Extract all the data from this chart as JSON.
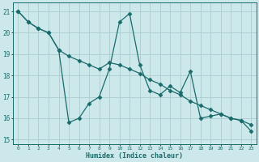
{
  "title": "",
  "xlabel": "Humidex (Indice chaleur)",
  "ylabel": "",
  "bg_color": "#cce8ea",
  "grid_color": "#aacdd0",
  "line_color": "#1a6b6b",
  "xlim": [
    -0.5,
    23.5
  ],
  "ylim": [
    14.8,
    21.4
  ],
  "xticks": [
    0,
    1,
    2,
    3,
    4,
    5,
    6,
    7,
    8,
    9,
    10,
    11,
    12,
    13,
    14,
    15,
    16,
    17,
    18,
    19,
    20,
    21,
    22,
    23
  ],
  "yticks": [
    15,
    16,
    17,
    18,
    19,
    20,
    21
  ],
  "data_x": [
    0,
    1,
    2,
    3,
    4,
    5,
    6,
    7,
    8,
    9,
    10,
    11,
    12,
    13,
    14,
    15,
    16,
    17,
    18,
    19,
    20,
    21,
    22,
    23
  ],
  "data_y1": [
    21.0,
    20.5,
    20.2,
    20.0,
    19.2,
    15.8,
    16.0,
    16.7,
    17.0,
    18.3,
    20.5,
    20.9,
    18.5,
    17.3,
    17.1,
    17.5,
    17.2,
    18.2,
    16.0,
    16.1,
    16.2,
    16.0,
    15.9,
    15.4
  ],
  "data_y2": [
    21.0,
    20.5,
    20.2,
    20.0,
    19.2,
    18.9,
    18.7,
    18.5,
    18.3,
    18.6,
    18.5,
    18.3,
    18.1,
    17.8,
    17.6,
    17.3,
    17.1,
    16.8,
    16.6,
    16.4,
    16.2,
    16.0,
    15.9,
    15.7
  ],
  "marker": "D",
  "markersize": 2.5,
  "linewidth": 0.9
}
